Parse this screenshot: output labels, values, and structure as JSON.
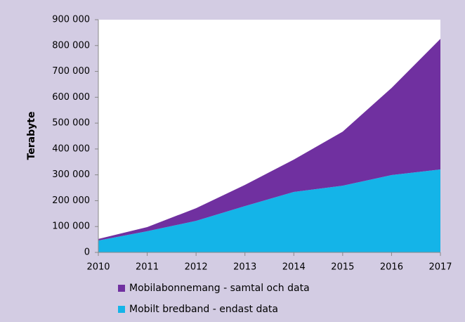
{
  "chart_data": {
    "type": "stacked_area",
    "y_label": "Terabyte",
    "x": [
      2010,
      2011,
      2012,
      2013,
      2014,
      2015,
      2016,
      2017
    ],
    "series": [
      {
        "name": "Mobilabonnemang - samtal och data",
        "color": "#7030a0",
        "values": [
          6000,
          16000,
          49000,
          82000,
          125000,
          209000,
          337000,
          505000
        ]
      },
      {
        "name": "Mobilt bredband - endast data",
        "color": "#14b4e8",
        "values": [
          46000,
          82000,
          122000,
          179000,
          234000,
          258000,
          299000,
          321000
        ]
      }
    ],
    "xlim": [
      2010,
      2017
    ],
    "xticks": [
      2010,
      2011,
      2012,
      2013,
      2014,
      2015,
      2016,
      2017
    ],
    "ylim": [
      0,
      900000
    ],
    "yticks": [
      0,
      {
        "value": 100000,
        "label": "100 000"
      },
      {
        "value": 200000,
        "label": "200 000"
      },
      {
        "value": 300000,
        "label": "300 000"
      },
      {
        "value": 400000,
        "label": "400 000"
      },
      {
        "value": 500000,
        "label": "500 000"
      },
      {
        "value": 600000,
        "label": "600 000"
      },
      {
        "value": 700000,
        "label": "700 000"
      },
      {
        "value": 800000,
        "label": "800 000"
      },
      {
        "value": 900000,
        "label": "900 000"
      }
    ],
    "grid": false,
    "legend": "bottom"
  }
}
